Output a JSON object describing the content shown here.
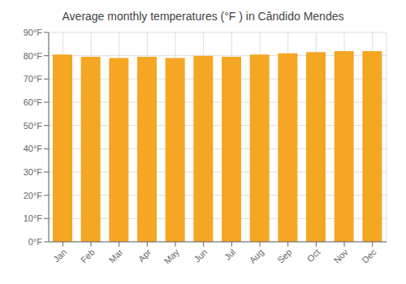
{
  "chart_data": {
    "type": "bar",
    "title": "Average monthly temperatures (°F ) in Cândido Mendes",
    "categories": [
      "Jan",
      "Feb",
      "Mar",
      "Apr",
      "May",
      "Jun",
      "Jul",
      "Aug",
      "Sep",
      "Oct",
      "Nov",
      "Dec"
    ],
    "values": [
      80.5,
      79.5,
      79.0,
      79.5,
      79.0,
      80.0,
      79.5,
      80.5,
      81.0,
      81.5,
      82.0,
      82.0
    ],
    "color": "#F5A623",
    "ylim": [
      0,
      90
    ],
    "yticks": [
      {
        "value": 0,
        "label": "0°F"
      },
      {
        "value": 10,
        "label": "10°F"
      },
      {
        "value": 20,
        "label": "20°F"
      },
      {
        "value": 30,
        "label": "30°F"
      },
      {
        "value": 40,
        "label": "40°F"
      },
      {
        "value": 50,
        "label": "50°F"
      },
      {
        "value": 60,
        "label": "60°F"
      },
      {
        "value": 70,
        "label": "70°F"
      },
      {
        "value": 80,
        "label": "80°F"
      },
      {
        "value": 90,
        "label": "90°F"
      }
    ],
    "grid": true
  }
}
